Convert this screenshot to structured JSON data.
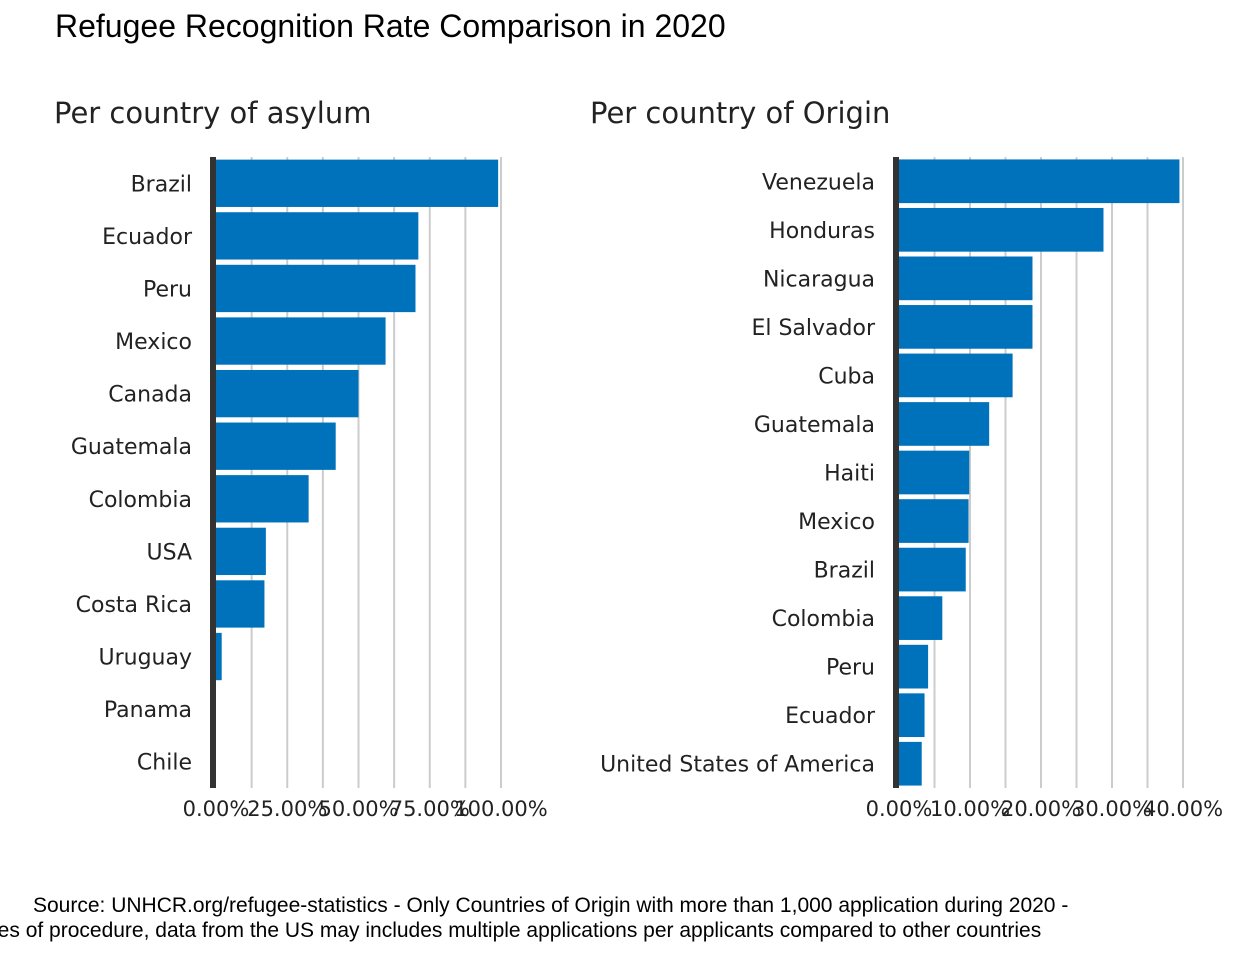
{
  "title": "Refugee Recognition Rate Comparison in 2020",
  "source": {
    "line1": "Source: UNHCR.org/refugee-statistics - Only Countries of Origin with more than 1,000 application during 2020 -",
    "line2": "pes of procedure, data from the US may includes multiple applications per applicants compared to other countries"
  },
  "colors": {
    "bar": "#0072bc",
    "grid": "#cccccc",
    "axis": "#333333",
    "text": "#222222"
  },
  "chart_data": [
    {
      "type": "bar",
      "orientation": "horizontal",
      "title": "Per country of asylum",
      "categories": [
        "Brazil",
        "Ecuador",
        "Peru",
        "Mexico",
        "Canada",
        "Guatemala",
        "Colombia",
        "USA",
        "Costa Rica",
        "Uruguay",
        "Panama",
        "Chile"
      ],
      "values": [
        0.99,
        0.71,
        0.7,
        0.595,
        0.5,
        0.42,
        0.325,
        0.175,
        0.17,
        0.02,
        0.0,
        0.0
      ],
      "xlim": [
        0,
        1.0
      ],
      "ticks": [
        0,
        0.125,
        0.25,
        0.375,
        0.5,
        0.625,
        0.75,
        0.875,
        1.0
      ],
      "tick_labels": [
        "0.00%",
        "25.00%",
        "50.00%",
        "75.00%",
        "100.00%"
      ],
      "grid": true
    },
    {
      "type": "bar",
      "orientation": "horizontal",
      "title": "Per country of Origin",
      "categories": [
        "Venezuela",
        "Honduras",
        "Nicaragua",
        "El Salvador",
        "Cuba",
        "Guatemala",
        "Haiti",
        "Mexico",
        "Brazil",
        "Colombia",
        "Peru",
        "Ecuador",
        "United States of America"
      ],
      "values": [
        0.395,
        0.288,
        0.188,
        0.188,
        0.16,
        0.127,
        0.099,
        0.098,
        0.094,
        0.061,
        0.041,
        0.036,
        0.032
      ],
      "xlim": [
        0,
        0.4
      ],
      "ticks": [
        0,
        0.05,
        0.1,
        0.15,
        0.2,
        0.25,
        0.3,
        0.35,
        0.4
      ],
      "tick_labels": [
        "0.00%",
        "10.00%",
        "20.00%",
        "30.00%",
        "40.00%"
      ],
      "grid": true
    }
  ]
}
